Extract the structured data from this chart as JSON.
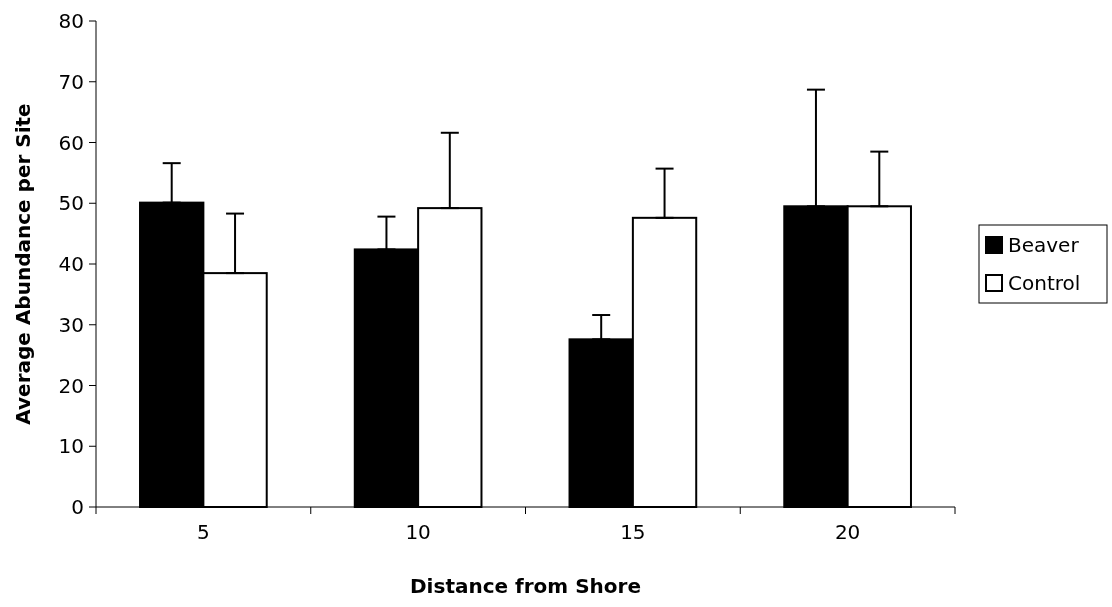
{
  "chart_data": {
    "type": "bar",
    "xlabel": "Distance from Shore",
    "ylabel": "Average Abundance per Site",
    "categories": [
      "5",
      "10",
      "15",
      "20"
    ],
    "series": [
      {
        "name": "Beaver",
        "color": "#000000",
        "values": [
          50.1,
          42.4,
          27.6,
          49.5
        ],
        "errors": [
          [
            50.1,
            56.6
          ],
          [
            42.4,
            47.8
          ],
          [
            27.6,
            31.6
          ],
          [
            49.5,
            68.7
          ]
        ]
      },
      {
        "name": "Control",
        "color": "#ffffff",
        "values": [
          38.5,
          49.2,
          47.6,
          49.5
        ],
        "errors": [
          [
            38.5,
            48.3
          ],
          [
            49.2,
            61.6
          ],
          [
            47.6,
            55.7
          ],
          [
            49.5,
            58.5
          ]
        ]
      }
    ],
    "ylim": [
      0,
      80
    ],
    "yticks": [
      0,
      10,
      20,
      30,
      40,
      50,
      60,
      70,
      80
    ],
    "grid": false,
    "legend": "right"
  }
}
